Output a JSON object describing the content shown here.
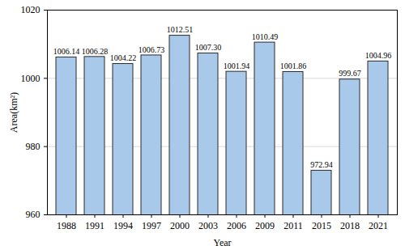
{
  "chart_data": {
    "type": "bar",
    "x_label": "Year",
    "y_label": "Area(km²)",
    "categories": [
      "1988",
      "1991",
      "1994",
      "1997",
      "2000",
      "2003",
      "2006",
      "2009",
      "2011",
      "2015",
      "2018",
      "2021"
    ],
    "values": [
      1006.14,
      1006.28,
      1004.22,
      1006.73,
      1012.51,
      1007.3,
      1001.94,
      1010.49,
      1001.86,
      972.94,
      999.67,
      1004.96
    ],
    "value_labels": [
      "1006.14",
      "1006.28",
      "1004.22",
      "1006.73",
      "1012.51",
      "1007.30",
      "1001.94",
      "1010.49",
      "1001.86",
      "972.94",
      "999.67",
      "1004.96"
    ],
    "color": "#a9c9ea",
    "ylim": [
      960,
      1020
    ],
    "yticks": [
      960,
      980,
      1000,
      1020
    ],
    "grid": true,
    "data_labels": true
  }
}
